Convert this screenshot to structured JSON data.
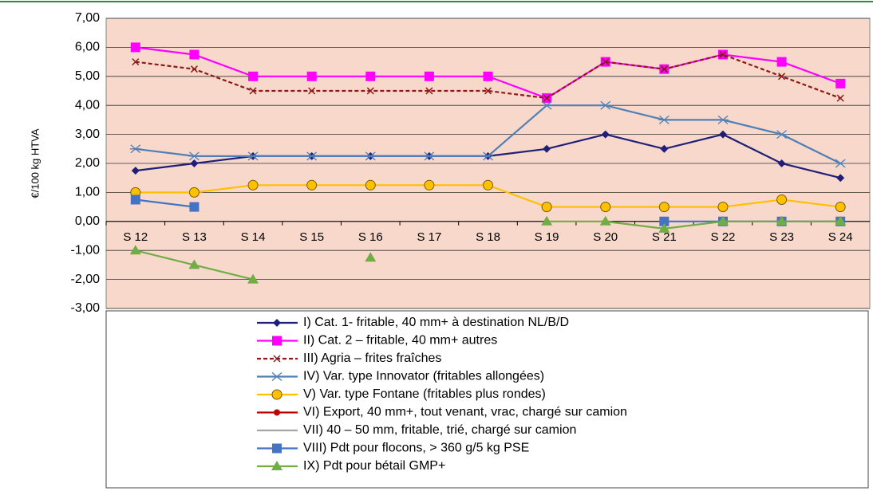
{
  "chart_data": {
    "type": "line",
    "y_label": "€/100 kg HTVA",
    "categories": [
      "S 12",
      "S 13",
      "S 14",
      "S 15",
      "S 16",
      "S 17",
      "S 18",
      "S 19",
      "S 20",
      "S 21",
      "S 22",
      "S 23",
      "S 24"
    ],
    "ylim": [
      -3,
      7
    ],
    "yticks": [
      {
        "value": -3,
        "label": "-3,00"
      },
      {
        "value": -2,
        "label": "-2,00"
      },
      {
        "value": -1,
        "label": "-1,00"
      },
      {
        "value": 0,
        "label": "0,00"
      },
      {
        "value": 1,
        "label": "1,00"
      },
      {
        "value": 2,
        "label": "2,00"
      },
      {
        "value": 3,
        "label": "3,00"
      },
      {
        "value": 4,
        "label": "4,00"
      },
      {
        "value": 5,
        "label": "5,00"
      },
      {
        "value": 6,
        "label": "6,00"
      },
      {
        "value": 7,
        "label": "7,00"
      }
    ],
    "grid": true,
    "legend": "bottom",
    "series": [
      {
        "name": "I) Cat. 1- fritable, 40 mm+ à destination NL/B/D",
        "color": "#1f1f7a",
        "marker": "diamond",
        "values": [
          1.75,
          2.0,
          2.25,
          2.25,
          2.25,
          2.25,
          2.25,
          2.5,
          3.0,
          2.5,
          3.0,
          2.0,
          1.5
        ]
      },
      {
        "name": "II) Cat. 2 – fritable, 40 mm+ autres",
        "color": "#ff00ff",
        "marker": "square",
        "values": [
          6.0,
          5.75,
          5.0,
          5.0,
          5.0,
          5.0,
          5.0,
          4.25,
          5.5,
          5.25,
          5.75,
          5.5,
          4.75
        ]
      },
      {
        "name": "III) Agria – frites fraîches",
        "color": "#8b1a1a",
        "marker": "x",
        "dash": true,
        "values": [
          5.5,
          5.25,
          4.5,
          4.5,
          4.5,
          4.5,
          4.5,
          4.25,
          5.5,
          5.25,
          5.75,
          5.0,
          4.25
        ]
      },
      {
        "name": "IV) Var. type Innovator (fritables allongées)",
        "color": "#4f7fb5",
        "marker": "asterisk",
        "values": [
          2.5,
          2.25,
          2.25,
          2.25,
          2.25,
          2.25,
          2.25,
          4.0,
          4.0,
          3.5,
          3.5,
          3.0,
          2.0
        ]
      },
      {
        "name": "V) Var. type Fontane (fritables plus rondes)",
        "color": "#ffc000",
        "marker": "circle",
        "values": [
          1.0,
          1.0,
          1.25,
          1.25,
          1.25,
          1.25,
          1.25,
          0.5,
          0.5,
          0.5,
          0.5,
          0.75,
          0.5
        ]
      },
      {
        "name": "VI) Export, 40 mm+, tout venant, vrac, chargé sur camion",
        "color": "#c00000",
        "marker": "dot",
        "values": [
          null,
          null,
          null,
          null,
          null,
          null,
          null,
          null,
          null,
          null,
          null,
          null,
          null
        ]
      },
      {
        "name": "VII)  40 – 50 mm, fritable, trié, chargé sur camion",
        "color": "#a6a6a6",
        "marker": "none",
        "values": [
          null,
          null,
          null,
          null,
          null,
          null,
          null,
          null,
          null,
          null,
          null,
          null,
          null
        ]
      },
      {
        "name": "VIII) Pdt pour flocons, > 360 g/5 kg PSE",
        "color": "#4472c4",
        "marker": "square",
        "values": [
          0.75,
          0.5,
          null,
          null,
          null,
          null,
          null,
          null,
          null,
          0,
          0,
          0,
          0
        ]
      },
      {
        "name": "IX) Pdt pour bétail GMP+",
        "color": "#70ad47",
        "marker": "triangle",
        "values": [
          -1.0,
          -1.5,
          -2.0,
          null,
          -1.25,
          null,
          null,
          0,
          0,
          -0.25,
          0,
          0,
          0
        ]
      }
    ]
  }
}
